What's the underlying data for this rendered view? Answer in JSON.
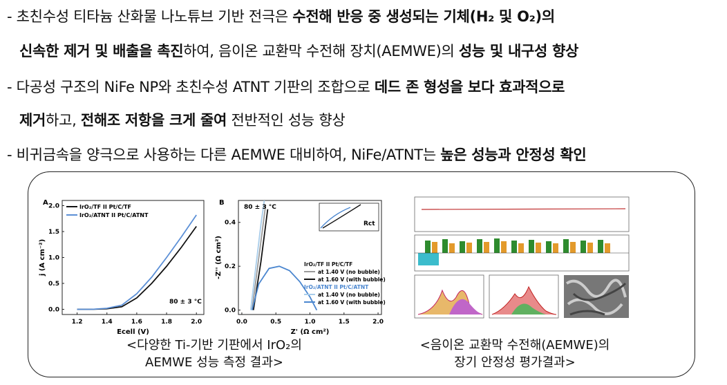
{
  "bullets": [
    {
      "lines": [
        [
          {
            "text": "- 초친수성 티타늄 산화물 나노튜브 기반 전극은 ",
            "bold": false
          },
          {
            "text": "수전해 반응 중 생성되는 기체(H₂ 및 O₂)의",
            "bold": true
          }
        ],
        [
          {
            "text": "신속한 제거 및 배출을 촉진",
            "bold": true
          },
          {
            "text": "하여, 음이온 교환막 수전해 장치(AEMWE)의 ",
            "bold": false
          },
          {
            "text": "성능 및 내구성 향상",
            "bold": true
          }
        ]
      ]
    },
    {
      "lines": [
        [
          {
            "text": "- 다공성 구조의 NiFe NP와 초친수성 ATNT 기판의 조합으로 ",
            "bold": false
          },
          {
            "text": "데드 존 형성을 보다 효과적으로",
            "bold": true
          }
        ],
        [
          {
            "text": "제거",
            "bold": true
          },
          {
            "text": "하고, ",
            "bold": false
          },
          {
            "text": "전해조 저항을 크게 줄여",
            "bold": true
          },
          {
            "text": " 전반적인 성능 향상",
            "bold": false
          }
        ]
      ]
    },
    {
      "lines": [
        [
          {
            "text": "- 비귀금속을 양극으로 사용하는 다른 AEMWE 대비하여, NiFe/ATNT는 ",
            "bold": false
          },
          {
            "text": "높은 성능과 안정성 확인",
            "bold": true
          }
        ]
      ]
    }
  ],
  "figures": [
    {
      "chart": {
        "type": "line",
        "panel": "A",
        "xlabel": "Ecell (V)",
        "ylabel": "j (A cm⁻²)",
        "annotation": "80 ± 3 °C",
        "x": [
          1.2,
          1.3,
          1.4,
          1.5,
          1.6,
          1.7,
          1.8,
          1.9,
          2.0
        ],
        "series": [
          {
            "name": "IrO₂/TF II Pt/C/TF",
            "color": "#111111",
            "values": [
              0,
              0,
              0.01,
              0.05,
              0.22,
              0.5,
              0.83,
              1.2,
              1.6
            ]
          },
          {
            "name": "IrO₂/ATNT II Pt/C/ATNT",
            "color": "#5b8fd6",
            "values": [
              0,
              0,
              0.02,
              0.08,
              0.3,
              0.62,
              1.0,
              1.4,
              1.82
            ]
          }
        ],
        "xlim": [
          1.1,
          2.05
        ],
        "ylim": [
          -0.1,
          2.1
        ],
        "xticks": [
          1.2,
          1.4,
          1.6,
          1.8,
          {
            "value": 2,
            "label": "2.0"
          }
        ],
        "yticks": [
          {
            "value": 0,
            "label": "0.0"
          },
          0.5,
          {
            "value": 1,
            "label": "1.0"
          },
          1.5,
          {
            "value": 2,
            "label": "2.0"
          }
        ]
      },
      "caption": [
        "<다양한 Ti-기반 기판에서 IrO₂의",
        "AEMWE 성능 측정 결과>"
      ]
    },
    {
      "chart": {
        "type": "line",
        "panel": "B",
        "xlabel": "Z' (Ω cm²)",
        "ylabel": "-Z'' (Ω cm²)",
        "annotation": "80 ± 3 °C",
        "inset_label": "Rct",
        "groups": [
          {
            "title": "IrO₂/TF II Pt/C/TF",
            "series": [
              {
                "name": "at 1.40 V (no bubble)",
                "color": "#9a9a9a",
                "x": [
                  0.15,
                  0.2,
                  0.25,
                  0.3,
                  0.35
                ],
                "values": [
                  0,
                  0.12,
                  0.24,
                  0.36,
                  0.48
                ]
              },
              {
                "name": "at 1.60 V (with bubble)",
                "color": "#111111",
                "x": [
                  0.17,
                  0.22,
                  0.28,
                  0.33,
                  0.38
                ],
                "values": [
                  0,
                  0.1,
                  0.22,
                  0.34,
                  0.46
                ]
              }
            ]
          },
          {
            "title": "IrO₂/ATNT II Pt/C/ATNT",
            "series": [
              {
                "name": "at 1.40 V (no bubble)",
                "color": "#a9cdea",
                "x": [
                  0.13,
                  0.18,
                  0.23,
                  0.28,
                  0.33
                ],
                "values": [
                  0,
                  0.13,
                  0.26,
                  0.39,
                  0.5
                ]
              },
              {
                "name": "at 1.60 V (with bubble)",
                "color": "#4a86cf",
                "x": [
                  0.15,
                  0.25,
                  0.4,
                  0.55,
                  0.7,
                  0.85,
                  1.0,
                  1.1
                ],
                "values": [
                  0,
                  0.12,
                  0.19,
                  0.2,
                  0.18,
                  0.13,
                  0.06,
                  0
                ]
              }
            ]
          }
        ],
        "xlim": [
          -0.05,
          2.05
        ],
        "ylim": [
          -0.02,
          0.5
        ],
        "xticks": [
          {
            "value": 0,
            "label": "0.0"
          },
          0.5,
          {
            "value": 1,
            "label": "1.0"
          },
          1.5,
          {
            "value": 2,
            "label": "2.0"
          }
        ],
        "yticks": [
          {
            "value": 0,
            "label": "0.0"
          },
          0.2,
          0.4
        ]
      },
      "caption": null
    },
    {
      "chart": null,
      "caption": [
        "<음이온 교환막 수전해(AEMWE)의",
        "장기 안정성 평가결과>"
      ]
    }
  ]
}
